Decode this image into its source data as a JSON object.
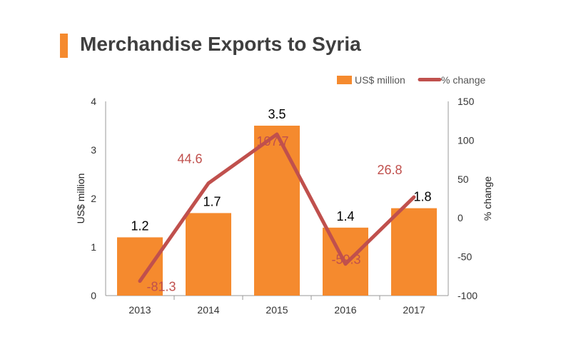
{
  "title": "Merchandise Exports to Syria",
  "colors": {
    "bar": "#F58A2E",
    "line": "#C0504D",
    "accent": "#F58A2E",
    "axis": "#999999"
  },
  "chart_data": {
    "type": "bar",
    "title": "Merchandise Exports to Syria",
    "categories": [
      "2013",
      "2014",
      "2015",
      "2016",
      "2017"
    ],
    "series": [
      {
        "name": "US$ million",
        "type": "bar",
        "axis": "left",
        "values": [
          1.2,
          1.7,
          3.5,
          1.4,
          1.8
        ]
      },
      {
        "name": "% change",
        "type": "line",
        "axis": "right",
        "values": [
          -81.3,
          44.6,
          107.7,
          -59.3,
          26.8
        ]
      }
    ],
    "bar_value_labels": [
      "1.2",
      "1.7",
      "3.5",
      "1.4",
      "1.8"
    ],
    "line_value_labels": [
      "-81.3",
      "44.6",
      "107.7",
      "-59.3",
      "26.8"
    ],
    "ylabel": "US$ million",
    "y2label": "% change",
    "ylim": [
      0,
      4
    ],
    "y2lim": [
      -100,
      150
    ],
    "yticks": [
      "0",
      "1",
      "2",
      "3",
      "4"
    ],
    "y2ticks": [
      "-100",
      "-50",
      "0",
      "50",
      "100",
      "150"
    ],
    "legend": {
      "placement": "top-right",
      "entries": [
        "US$ million",
        "% change"
      ]
    },
    "grid": false
  }
}
